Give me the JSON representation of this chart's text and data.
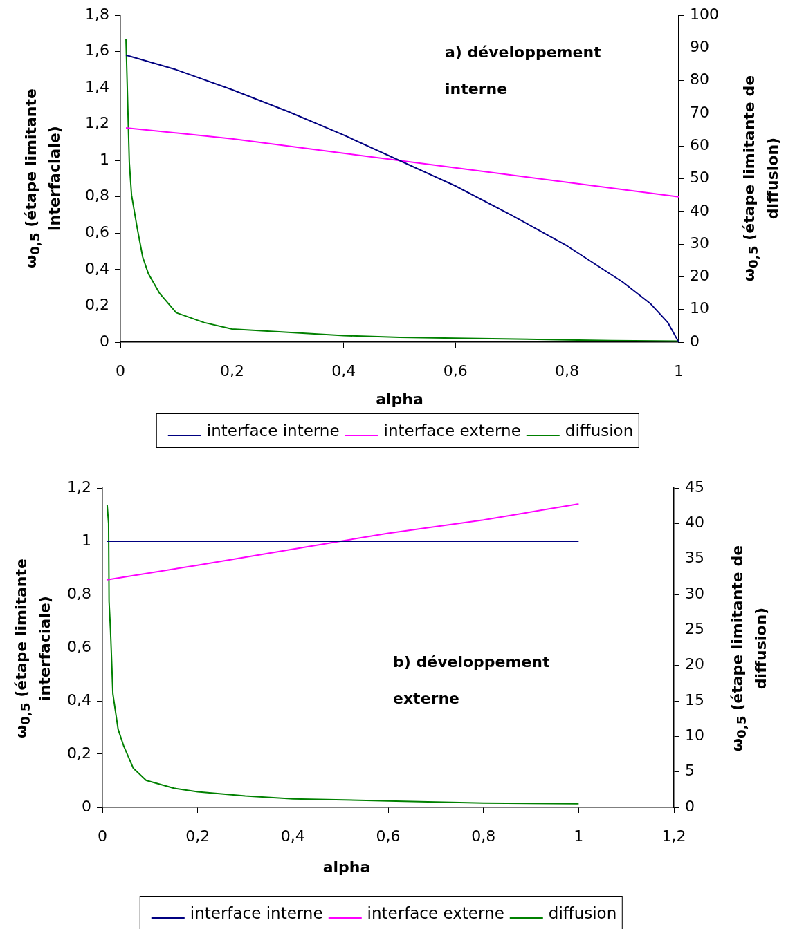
{
  "chart_data": [
    {
      "type": "line",
      "annotations": [
        "a) développement interne"
      ],
      "xlabel": "alpha",
      "ylabel": "ω$_{0,5}$ (étape limitante interfaciale)",
      "y2label": "ω$_{0,5}$ (étape limitante de diffusion)",
      "xlim": [
        0,
        1
      ],
      "xticks": [
        {
          "value": 0,
          "label": "0"
        },
        {
          "value": 0.2,
          "label": "0,2"
        },
        {
          "value": 0.4,
          "label": "0,4"
        },
        {
          "value": 0.6,
          "label": "0,6"
        },
        {
          "value": 0.8,
          "label": "0,8"
        },
        {
          "value": 1,
          "label": "1"
        }
      ],
      "ylim": [
        0,
        1.8
      ],
      "yticks": [
        {
          "value": 0,
          "label": "0"
        },
        {
          "value": 0.2,
          "label": "0,2"
        },
        {
          "value": 0.4,
          "label": "0,4"
        },
        {
          "value": 0.6,
          "label": "0,6"
        },
        {
          "value": 0.8,
          "label": "0,8"
        },
        {
          "value": 1,
          "label": "1"
        },
        {
          "value": 1.2,
          "label": "1,2"
        },
        {
          "value": 1.4,
          "label": "1,4"
        },
        {
          "value": 1.6,
          "label": "1,6"
        },
        {
          "value": 1.8,
          "label": "1,8"
        }
      ],
      "y2lim": [
        0,
        100
      ],
      "y2ticks": [
        0,
        10,
        20,
        30,
        40,
        50,
        60,
        70,
        80,
        90,
        100
      ],
      "grid": false,
      "legend": "bottom",
      "marker": "none",
      "series": [
        {
          "name": "interface interne",
          "color": "#000080",
          "x": [
            0.01,
            0.1,
            0.2,
            0.3,
            0.4,
            0.5,
            0.6,
            0.7,
            0.8,
            0.9,
            0.95,
            0.98,
            1
          ],
          "values": [
            1.58,
            1.5,
            1.39,
            1.27,
            1.14,
            1.0,
            0.86,
            0.7,
            0.53,
            0.33,
            0.21,
            0.11,
            0
          ]
        },
        {
          "name": "interface externe",
          "color": "#ff00ff",
          "x": [
            0.01,
            0.2,
            0.4,
            0.5,
            0.6,
            0.8,
            1
          ],
          "values": [
            1.18,
            1.12,
            1.04,
            1.0,
            0.96,
            0.88,
            0.8
          ]
        },
        {
          "name": "diffusion",
          "color": "#008000",
          "axis": "y2",
          "x": [
            0.01,
            0.016,
            0.02,
            0.03,
            0.04,
            0.05,
            0.07,
            0.1,
            0.15,
            0.2,
            0.3,
            0.4,
            0.5,
            0.6,
            0.8,
            0.88,
            1
          ],
          "values": [
            92.6,
            55,
            45,
            35,
            26,
            21,
            15,
            9,
            6,
            4,
            3,
            2,
            1.5,
            1.2,
            0.7,
            0.5,
            0.3
          ]
        }
      ]
    },
    {
      "type": "line",
      "annotations": [
        "b) développement externe"
      ],
      "xlabel": "alpha",
      "ylabel": "ω$_{0,5}$ (étape limitante interfaciale)",
      "y2label": "ω$_{0,5}$ (étape limitante de diffusion)",
      "xlim": [
        0,
        1.2
      ],
      "xticks": [
        {
          "value": 0,
          "label": "0"
        },
        {
          "value": 0.2,
          "label": "0,2"
        },
        {
          "value": 0.4,
          "label": "0,4"
        },
        {
          "value": 0.6,
          "label": "0,6"
        },
        {
          "value": 0.8,
          "label": "0,8"
        },
        {
          "value": 1,
          "label": "1"
        },
        {
          "value": 1.2,
          "label": "1,2"
        }
      ],
      "ylim": [
        0,
        1.2
      ],
      "yticks": [
        {
          "value": 0,
          "label": "0"
        },
        {
          "value": 0.2,
          "label": "0,2"
        },
        {
          "value": 0.4,
          "label": "0,4"
        },
        {
          "value": 0.6,
          "label": "0,6"
        },
        {
          "value": 0.8,
          "label": "0,8"
        },
        {
          "value": 1,
          "label": "1"
        },
        {
          "value": 1.2,
          "label": "1,2"
        }
      ],
      "y2lim": [
        0,
        45
      ],
      "y2ticks": [
        0,
        5,
        10,
        15,
        20,
        25,
        30,
        35,
        40,
        45
      ],
      "grid": false,
      "legend": "bottom",
      "marker": "none",
      "series": [
        {
          "name": "interface interne",
          "color": "#000080",
          "x": [
            0.01,
            1
          ],
          "values": [
            1,
            1
          ]
        },
        {
          "name": "interface externe",
          "color": "#ff00ff",
          "x": [
            0.01,
            0.2,
            0.4,
            0.5,
            0.6,
            0.8,
            1
          ],
          "values": [
            0.855,
            0.91,
            0.97,
            1.0,
            1.03,
            1.08,
            1.14
          ]
        },
        {
          "name": "diffusion",
          "color": "#008000",
          "axis": "y2",
          "x": [
            0.01,
            0.013,
            0.014,
            0.017,
            0.022,
            0.033,
            0.045,
            0.065,
            0.092,
            0.15,
            0.2,
            0.3,
            0.4,
            0.6,
            0.8,
            1
          ],
          "values": [
            42.6,
            40,
            29,
            25,
            16,
            11,
            8.6,
            5.5,
            3.8,
            2.7,
            2.2,
            1.6,
            1.2,
            0.9,
            0.6,
            0.5
          ]
        }
      ]
    }
  ]
}
